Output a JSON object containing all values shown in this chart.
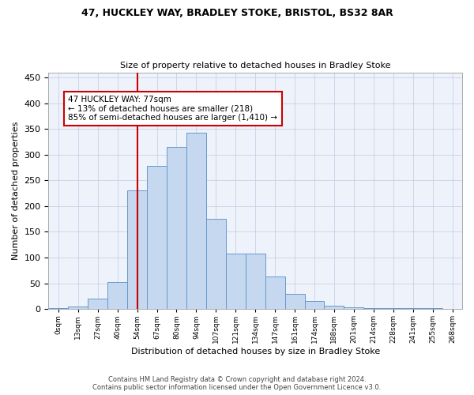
{
  "title1": "47, HUCKLEY WAY, BRADLEY STOKE, BRISTOL, BS32 8AR",
  "title2": "Size of property relative to detached houses in Bradley Stoke",
  "xlabel": "Distribution of detached houses by size in Bradley Stoke",
  "ylabel": "Number of detached properties",
  "bar_labels": [
    "0sqm",
    "13sqm",
    "27sqm",
    "40sqm",
    "54sqm",
    "67sqm",
    "80sqm",
    "94sqm",
    "107sqm",
    "121sqm",
    "134sqm",
    "147sqm",
    "161sqm",
    "174sqm",
    "188sqm",
    "201sqm",
    "214sqm",
    "228sqm",
    "241sqm",
    "255sqm",
    "268sqm"
  ],
  "bar_heights": [
    2,
    5,
    20,
    53,
    230,
    278,
    315,
    343,
    175,
    108,
    108,
    63,
    30,
    15,
    7,
    3,
    1,
    1,
    1,
    1,
    0
  ],
  "bar_color": "#c5d8f0",
  "bar_edgecolor": "#6699cc",
  "vline_x": 4,
  "vline_color": "#cc0000",
  "annotation_text": "47 HUCKLEY WAY: 77sqm\n← 13% of detached houses are smaller (218)\n85% of semi-detached houses are larger (1,410) →",
  "annotation_box_color": "#cc0000",
  "bg_color": "#eef2fb",
  "grid_color": "#c0cce0",
  "footer1": "Contains HM Land Registry data © Crown copyright and database right 2024.",
  "footer2": "Contains public sector information licensed under the Open Government Licence v3.0.",
  "ylim": [
    0,
    460
  ],
  "yticks": [
    0,
    50,
    100,
    150,
    200,
    250,
    300,
    350,
    400,
    450
  ]
}
